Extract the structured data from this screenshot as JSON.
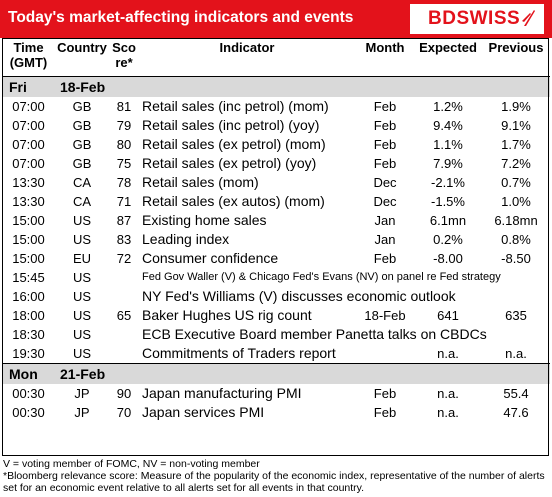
{
  "header": {
    "title": "Today's market-affecting indicators and events",
    "logo_text": "BDSWISS"
  },
  "columns": {
    "time": [
      "Time",
      "(GMT)"
    ],
    "country": "Country",
    "score": [
      "Sco",
      "re*"
    ],
    "indicator": "Indicator",
    "month": "Month",
    "expected": "Expected",
    "previous": "Previous"
  },
  "days": [
    {
      "day": "Fri",
      "date": "18-Feb",
      "rows": [
        {
          "time": "07:00",
          "country": "GB",
          "score": "81",
          "indicator": "Retail sales (inc petrol) (mom)",
          "month": "Feb",
          "expected": "1.2%",
          "previous": "1.9%"
        },
        {
          "time": "07:00",
          "country": "GB",
          "score": "79",
          "indicator": "Retail sales (inc petrol) (yoy)",
          "month": "Feb",
          "expected": "9.4%",
          "previous": "9.1%"
        },
        {
          "time": "07:00",
          "country": "GB",
          "score": "80",
          "indicator": "Retail sales (ex petrol) (mom)",
          "month": "Feb",
          "expected": "1.1%",
          "previous": "1.7%"
        },
        {
          "time": "07:00",
          "country": "GB",
          "score": "75",
          "indicator": "Retail sales (ex petrol) (yoy)",
          "month": "Feb",
          "expected": "7.9%",
          "previous": "7.2%"
        },
        {
          "time": "13:30",
          "country": "CA",
          "score": "78",
          "indicator": "Retail sales (mom)",
          "month": "Dec",
          "expected": "-2.1%",
          "previous": "0.7%"
        },
        {
          "time": "13:30",
          "country": "CA",
          "score": "71",
          "indicator": "Retail sales (ex autos) (mom)",
          "month": "Dec",
          "expected": "-1.5%",
          "previous": "1.0%"
        },
        {
          "time": "15:00",
          "country": "US",
          "score": "87",
          "indicator": "Existing home sales",
          "month": "Jan",
          "expected": "6.1mn",
          "previous": "6.18mn"
        },
        {
          "time": "15:00",
          "country": "US",
          "score": "83",
          "indicator": "Leading index",
          "month": "Jan",
          "expected": "0.2%",
          "previous": "0.8%"
        },
        {
          "time": "15:00",
          "country": "EU",
          "score": "72",
          "indicator": "Consumer confidence",
          "month": "Feb",
          "expected": "-8.00",
          "previous": "-8.50"
        },
        {
          "time": "15:45",
          "country": "US",
          "score": "",
          "indicator": "Fed Gov Waller (V) & Chicago Fed's Evans (NV) on panel re Fed strategy",
          "span": true,
          "small": true
        },
        {
          "time": "16:00",
          "country": "US",
          "score": "",
          "indicator": "NY Fed's Williams (V) discusses economic outlook",
          "span": true
        },
        {
          "time": "18:00",
          "country": "US",
          "score": "65",
          "indicator": "Baker Hughes US rig count",
          "month": "18-Feb",
          "expected": "641",
          "previous": "635"
        },
        {
          "time": "18:30",
          "country": "US",
          "score": "",
          "indicator": "ECB Executive Board member Panetta talks on CBDCs",
          "span": true
        },
        {
          "time": "19:30",
          "country": "US",
          "score": "",
          "indicator": "Commitments of Traders  report",
          "month": "",
          "expected": "n.a.",
          "previous": "n.a."
        }
      ]
    },
    {
      "day": "Mon",
      "date": "21-Feb",
      "rows": [
        {
          "time": "00:30",
          "country": "JP",
          "score": "90",
          "indicator": "Japan manufacturing PMI",
          "month": "Feb",
          "expected": "n.a.",
          "previous": "55.4"
        },
        {
          "time": "00:30",
          "country": "JP",
          "score": "70",
          "indicator": "Japan services PMI",
          "month": "Feb",
          "expected": "n.a.",
          "previous": "47.6"
        }
      ]
    }
  ],
  "footnotes": [
    "V = voting member of FOMC, NV = non-voting member",
    "*Bloomberg relevance score:  Measure of the popularity of the economic index, representative of the number of alerts set for an economic event relative to all alerts set for all events in that country."
  ],
  "colors": {
    "header_bg": "#e3121b",
    "day_bg": "#d9d9d9",
    "logo": "#e3121b"
  }
}
